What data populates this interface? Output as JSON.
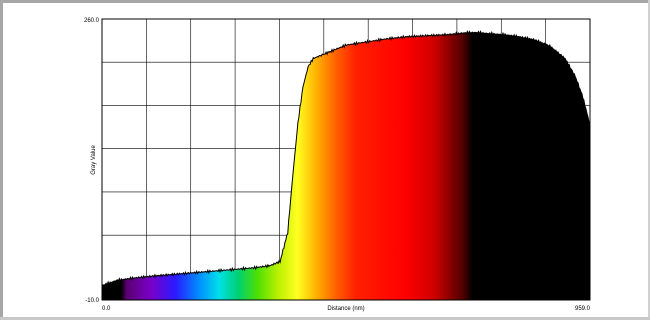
{
  "chart_data": {
    "type": "area",
    "title": "",
    "xlabel": "Distance (nm)",
    "ylabel": "Gray Value",
    "xlim": [
      0.0,
      959.0
    ],
    "ylim": [
      -10.0,
      260.0
    ],
    "x_tick_labels": [
      "0.0",
      "959.0"
    ],
    "y_tick_labels": [
      "260.0",
      "-10.0"
    ],
    "grid": true,
    "fill": "spectrum",
    "series": [
      {
        "x": [
          0,
          30,
          60,
          100,
          150,
          200,
          250,
          300,
          330,
          350,
          365,
          375,
          385,
          395,
          405,
          415,
          425,
          450,
          480,
          520,
          560,
          600,
          640,
          680,
          700,
          720,
          740,
          760,
          790,
          820,
          850,
          880,
          910,
          930,
          945,
          959
        ],
        "values": [
          4,
          9,
          11,
          13,
          15,
          17,
          19,
          21,
          23,
          27,
          55,
          110,
          160,
          195,
          214,
          222,
          224,
          229,
          235,
          238,
          241,
          243,
          244,
          245,
          246,
          247,
          247,
          246,
          245,
          243,
          240,
          234,
          222,
          205,
          185,
          158
        ]
      }
    ]
  }
}
